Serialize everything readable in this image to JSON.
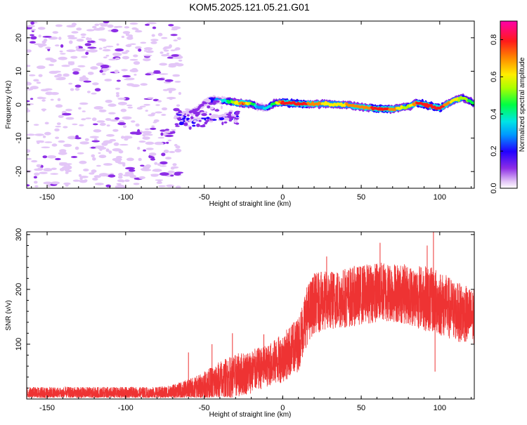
{
  "figure_title": "KOM5.2025.121.05.21.G01",
  "chart_data": [
    {
      "type": "heatmap",
      "xlabel": "Height of straight line (km)",
      "ylabel": "Frequency (Hz)",
      "xlim": [
        -163,
        122
      ],
      "ylim": [
        -25,
        25
      ],
      "xticks": [
        -150,
        -100,
        -50,
        0,
        50,
        100
      ],
      "yticks": [
        -20,
        -10,
        0,
        10,
        20
      ],
      "grid": false,
      "colorbar": {
        "label": "Normalized spectral amplitude",
        "range": [
          0,
          0.9
        ],
        "ticks": [
          0.0,
          0.2,
          0.4,
          0.6,
          0.8
        ],
        "colors": [
          "#ffffff",
          "#e3c6f7",
          "#8d2ee6",
          "#2200ff",
          "#0099ff",
          "#00e5e5",
          "#00ff44",
          "#aaff00",
          "#ffee00",
          "#ff8800",
          "#ff1a1a",
          "#ff00aa"
        ]
      },
      "noise_region": {
        "x": [
          -163,
          -65
        ],
        "y": [
          -25,
          25
        ],
        "amplitude": 0.05
      },
      "ridge": [
        {
          "x": -65,
          "y": -3.0
        },
        {
          "x": -55,
          "y": -1.5
        },
        {
          "x": -50,
          "y": 0.5
        },
        {
          "x": -45,
          "y": 1.5
        },
        {
          "x": -35,
          "y": 1.0
        },
        {
          "x": -28,
          "y": 0.5
        },
        {
          "x": -20,
          "y": 0.3
        },
        {
          "x": -15,
          "y": -0.8
        },
        {
          "x": -10,
          "y": -1.0
        },
        {
          "x": -5,
          "y": 0.6
        },
        {
          "x": 0,
          "y": 0.6
        },
        {
          "x": 10,
          "y": 0.3
        },
        {
          "x": 20,
          "y": 0.2
        },
        {
          "x": 30,
          "y": 0.2
        },
        {
          "x": 40,
          "y": 0.0
        },
        {
          "x": 50,
          "y": -0.7
        },
        {
          "x": 60,
          "y": -1.2
        },
        {
          "x": 70,
          "y": -1.3
        },
        {
          "x": 80,
          "y": -0.5
        },
        {
          "x": 86,
          "y": 0.5
        },
        {
          "x": 95,
          "y": -0.5
        },
        {
          "x": 100,
          "y": -1.0
        },
        {
          "x": 110,
          "y": 1.5
        },
        {
          "x": 115,
          "y": 2.0
        },
        {
          "x": 122,
          "y": 0.3
        }
      ],
      "ridge_amplitude": [
        {
          "x": -65,
          "a": 0.08
        },
        {
          "x": -50,
          "a": 0.15
        },
        {
          "x": -35,
          "a": 0.45
        },
        {
          "x": -25,
          "a": 0.8
        },
        {
          "x": -15,
          "a": 0.3
        },
        {
          "x": -5,
          "a": 0.5
        },
        {
          "x": 0,
          "a": 0.85
        },
        {
          "x": 10,
          "a": 0.85
        },
        {
          "x": 30,
          "a": 0.65
        },
        {
          "x": 50,
          "a": 0.75
        },
        {
          "x": 65,
          "a": 0.85
        },
        {
          "x": 80,
          "a": 0.55
        },
        {
          "x": 86,
          "a": 0.85
        },
        {
          "x": 100,
          "a": 0.85
        },
        {
          "x": 112,
          "a": 0.6
        },
        {
          "x": 122,
          "a": 0.5
        }
      ]
    },
    {
      "type": "line",
      "xlabel": "Height of straight line (km)",
      "ylabel": "SNR (v/v)",
      "xlim": [
        -163,
        122
      ],
      "ylim": [
        0,
        305
      ],
      "xticks": [
        -150,
        -100,
        -50,
        0,
        50,
        100
      ],
      "yticks": [
        100,
        200,
        300
      ],
      "grid": false,
      "color": "#ee3333",
      "series": [
        {
          "x": [
            -163,
            -120,
            -80,
            -70,
            -60,
            -50,
            -40,
            -30,
            -20,
            -10,
            0,
            10,
            15,
            20,
            30,
            40,
            50,
            60,
            70,
            80,
            90,
            100,
            110,
            122
          ],
          "values": [
            10,
            10,
            10,
            12,
            16,
            22,
            32,
            42,
            50,
            60,
            75,
            100,
            150,
            175,
            180,
            185,
            190,
            195,
            195,
            190,
            185,
            175,
            160,
            150
          ],
          "spread": [
            12,
            12,
            12,
            14,
            20,
            28,
            38,
            40,
            40,
            38,
            45,
            50,
            55,
            55,
            55,
            55,
            55,
            55,
            55,
            55,
            60,
            60,
            55,
            50
          ]
        }
      ],
      "peaks": [
        {
          "x": -60,
          "y": 85
        },
        {
          "x": -45,
          "y": 100
        },
        {
          "x": -32,
          "y": 120
        },
        {
          "x": -12,
          "y": 118
        },
        {
          "x": 28,
          "y": 260
        },
        {
          "x": 62,
          "y": 285
        },
        {
          "x": 92,
          "y": 280
        },
        {
          "x": 96,
          "y": 305
        },
        {
          "x": 97,
          "y": 50
        }
      ]
    }
  ]
}
